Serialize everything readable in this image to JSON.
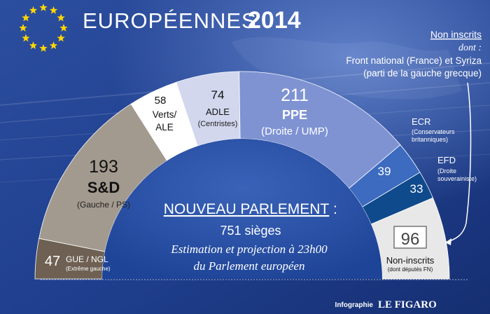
{
  "header": {
    "title_word": "EUROPÉENNES",
    "title_year": "2014"
  },
  "ni_note": {
    "heading": "Non inscrits",
    "dont": "dont :",
    "line1": "Front national (France) et Syriza",
    "line2": "(parti de la  gauche grecque)"
  },
  "chart_data": {
    "type": "pie",
    "variant": "parliament-hemicycle",
    "total_seats": 751,
    "slices": [
      {
        "key": "gue",
        "value": 47,
        "abbr": "GUE / NGL",
        "desc": "(Extrême gauche)",
        "color": "#6e6153"
      },
      {
        "key": "sd",
        "value": 193,
        "abbr": "S&D",
        "desc": "(Gauche / PS)",
        "color": "#a39a8f"
      },
      {
        "key": "verts",
        "value": 58,
        "abbr": "Verts/",
        "abbr2": "ALE",
        "desc": "",
        "color": "#ffffff"
      },
      {
        "key": "adle",
        "value": 74,
        "abbr": "ADLE",
        "desc": "(Centristes)",
        "color": "#d2d7ee"
      },
      {
        "key": "ppe",
        "value": 211,
        "abbr": "PPE",
        "desc": "(Droite / UMP)",
        "color": "#7f93d3"
      },
      {
        "key": "ecr",
        "value": 39,
        "abbr": "ECR",
        "desc": "(Conservateurs",
        "desc2": "britanniques)",
        "color": "#3c6bbf"
      },
      {
        "key": "efd",
        "value": 33,
        "abbr": "EFD",
        "desc": "(Droite",
        "desc2": "souverainiste)",
        "color": "#0f4a8c"
      },
      {
        "key": "ni",
        "value": 96,
        "abbr": "Non-inscrits",
        "desc": "(dont députés FN)",
        "color": "#e8e8e8"
      }
    ]
  },
  "center": {
    "headline": "NOUVEAU PARLEMENT",
    "colon": ":",
    "seats": "751 sièges",
    "line2": "Estimation et projection à 23h00",
    "line3": "du Parlement européen"
  },
  "credit": {
    "prefix": "Infographie",
    "brand": "LE FIGARO"
  },
  "colors": {
    "bg_dark": "#1e3c86",
    "bg_light": "#3d63b5",
    "star": "#ffd700",
    "text_dark": "#111111"
  }
}
